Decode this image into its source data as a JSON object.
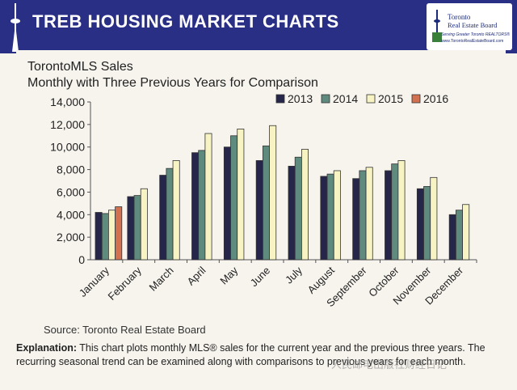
{
  "header": {
    "title_bold": "TREB",
    "title_rest": "HOUSING MARKET CHARTS",
    "logo_line1": "Toronto",
    "logo_line2": "Real Estate Board",
    "logo_line3": "Serving Greater Toronto REALTORS®",
    "logo_line4": "www.TorontoRealEstateBoard.com"
  },
  "chart_data": {
    "type": "bar",
    "title": "TorontoMLS Sales",
    "subtitle": "Monthly with Three Previous Years for Comparison",
    "categories": [
      "January",
      "February",
      "March",
      "April",
      "May",
      "June",
      "July",
      "August",
      "September",
      "October",
      "November",
      "December"
    ],
    "series": [
      {
        "name": "2013",
        "color": "#26264a",
        "values": [
          4200,
          5600,
          7500,
          9500,
          10000,
          8800,
          8300,
          7400,
          7200,
          7900,
          6300,
          4000
        ]
      },
      {
        "name": "2014",
        "color": "#5f8a7e",
        "values": [
          4100,
          5700,
          8100,
          9700,
          11000,
          10100,
          9100,
          7600,
          7900,
          8500,
          6500,
          4400
        ]
      },
      {
        "name": "2015",
        "color": "#f7f3c2",
        "values": [
          4400,
          6300,
          8800,
          11200,
          11600,
          11900,
          9800,
          7900,
          8200,
          8800,
          7300,
          4900
        ]
      },
      {
        "name": "2016",
        "color": "#d1714f",
        "values": [
          4700,
          null,
          null,
          null,
          null,
          null,
          null,
          null,
          null,
          null,
          null,
          null
        ]
      }
    ],
    "ylim": [
      0,
      14000
    ],
    "yticks": [
      0,
      2000,
      4000,
      6000,
      8000,
      10000,
      12000,
      14000
    ],
    "ytick_labels": [
      "0",
      "2,000",
      "4,000",
      "6,000",
      "8,000",
      "10,000",
      "12,000",
      "14,000"
    ],
    "legend_position": "top-right",
    "grid": false
  },
  "source": "Source: Toronto Real Estate Board",
  "explanation": {
    "label": "Explanation:",
    "text": " This chart plots monthly MLS® sales for the current year and the previous three years. The recurring seasonal trend can be examined along with comparisons to previous years for each month."
  },
  "watermark": "人民邮电出版社财经日记"
}
